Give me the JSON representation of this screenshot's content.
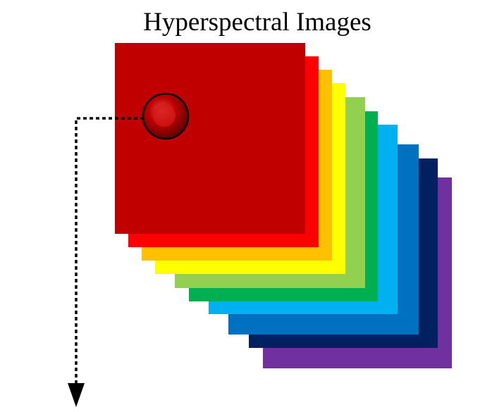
{
  "title": "Hyperspectral Images",
  "bands": [
    {
      "name": "band-violet",
      "color": "#7030A0"
    },
    {
      "name": "band-navy",
      "color": "#002060"
    },
    {
      "name": "band-blue",
      "color": "#0070C0"
    },
    {
      "name": "band-sky-blue",
      "color": "#00B0F0"
    },
    {
      "name": "band-green",
      "color": "#00B050"
    },
    {
      "name": "band-light-green",
      "color": "#92D050"
    },
    {
      "name": "band-yellow",
      "color": "#FFFF00"
    },
    {
      "name": "band-orange",
      "color": "#FFC000"
    },
    {
      "name": "band-red",
      "color": "#FF0000"
    },
    {
      "name": "band-dark-red",
      "color": "#C00000"
    }
  ],
  "pixel_marker": {
    "color": "#C00000",
    "edge_color": "#000000"
  },
  "arrow": {
    "style": "dotted",
    "color": "#000000"
  }
}
